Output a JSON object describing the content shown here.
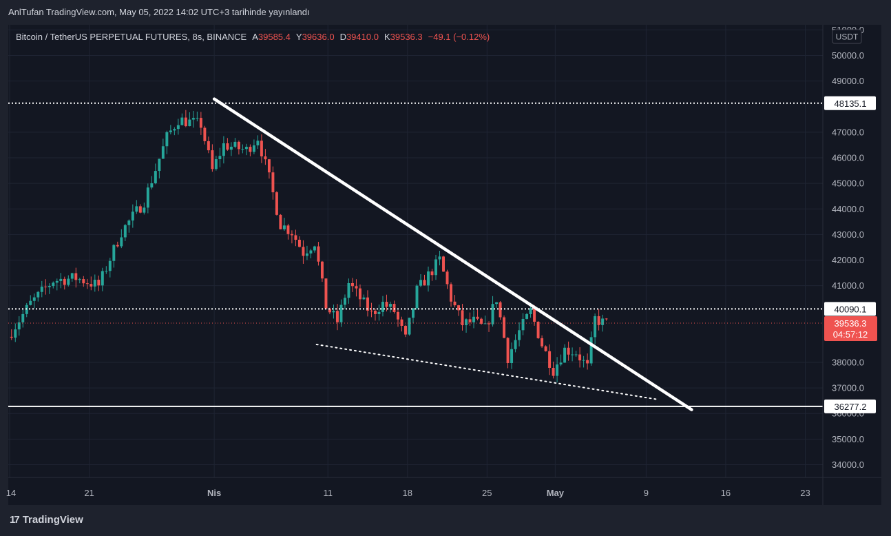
{
  "caption": "AnlTufan TradingView.com, May 05, 2022 14:02 UTC+3 tarihinde yayınlandı",
  "legend": {
    "symbol": "Bitcoin / TetherUS PERPETUAL FUTURES, 8s, BINANCE",
    "open_label": "A",
    "open": "39585.4",
    "high_label": "Y",
    "high": "39636.0",
    "low_label": "D",
    "low": "39410.0",
    "close_label": "K",
    "close": "39536.3",
    "change": "−49.1 (−0.12%)"
  },
  "footer": {
    "brand": "TradingView",
    "logo_mark": "17"
  },
  "colors": {
    "up": "#26a69a",
    "down": "#ef5350",
    "background": "#131722",
    "grid": "#1f2433",
    "text": "#b2b5be",
    "lines": "#ffffff"
  },
  "chart_data": {
    "type": "candlestick",
    "currency": "USDT",
    "ylim": [
      33500,
      51200
    ],
    "y_ticks": [
      51000,
      50000,
      49000,
      47000,
      46000,
      45000,
      44000,
      43000,
      42000,
      41000,
      38000,
      37000,
      36000,
      35000,
      34000
    ],
    "y_tick_labels": [
      "51000.0",
      "50000.0",
      "49000.0",
      "47000.0",
      "46000.0",
      "45000.0",
      "44000.0",
      "43000.0",
      "42000.0",
      "41000.0",
      "38000.0",
      "37000.0",
      "36000.0",
      "35000.0",
      "34000.0"
    ],
    "x_start": "2022-03-14",
    "x_end": "2022-05-24",
    "x_ticks": [
      {
        "date": "2022-03-14",
        "label": "14",
        "bold": false
      },
      {
        "date": "2022-03-21",
        "label": "21",
        "bold": false
      },
      {
        "date": "2022-04-01",
        "label": "Nis",
        "bold": true
      },
      {
        "date": "2022-04-11",
        "label": "11",
        "bold": false
      },
      {
        "date": "2022-04-18",
        "label": "18",
        "bold": false
      },
      {
        "date": "2022-04-25",
        "label": "25",
        "bold": false
      },
      {
        "date": "2022-05-01",
        "label": "May",
        "bold": true
      },
      {
        "date": "2022-05-09",
        "label": "9",
        "bold": false
      },
      {
        "date": "2022-05-16",
        "label": "16",
        "bold": false
      },
      {
        "date": "2022-05-23",
        "label": "23",
        "bold": false
      }
    ],
    "price_markers": [
      {
        "value": 48135.1,
        "label": "48135.1",
        "style": "dotted"
      },
      {
        "value": 40090.1,
        "label": "40090.1",
        "style": "dotted"
      },
      {
        "value": 36277.2,
        "label": "36277.2",
        "style": "solid"
      }
    ],
    "last_price": {
      "value": 39536.3,
      "label": "39536.3",
      "countdown": "04:57:12"
    },
    "trendlines": [
      {
        "style": "solid",
        "from": {
          "date": "2022-04-01",
          "price": 48300
        },
        "to": {
          "date": "2022-05-13",
          "price": 36150
        }
      },
      {
        "style": "dotted",
        "from": {
          "date": "2022-04-10",
          "price": 38700
        },
        "to": {
          "date": "2022-05-10",
          "price": 36550
        }
      }
    ],
    "anchors": [
      {
        "date": "2022-03-14",
        "price": 39000
      },
      {
        "date": "2022-03-16",
        "price": 40300
      },
      {
        "date": "2022-03-18",
        "price": 41200
      },
      {
        "date": "2022-03-20",
        "price": 41300
      },
      {
        "date": "2022-03-22",
        "price": 41000
      },
      {
        "date": "2022-03-24",
        "price": 43100
      },
      {
        "date": "2022-03-26",
        "price": 44300
      },
      {
        "date": "2022-03-28",
        "price": 46800
      },
      {
        "date": "2022-03-29",
        "price": 47500
      },
      {
        "date": "2022-03-31",
        "price": 47300
      },
      {
        "date": "2022-04-01",
        "price": 45500
      },
      {
        "date": "2022-04-02",
        "price": 46500
      },
      {
        "date": "2022-04-04",
        "price": 46300
      },
      {
        "date": "2022-04-05",
        "price": 46800
      },
      {
        "date": "2022-04-06",
        "price": 45200
      },
      {
        "date": "2022-04-07",
        "price": 43400
      },
      {
        "date": "2022-04-08",
        "price": 43100
      },
      {
        "date": "2022-04-09",
        "price": 42300
      },
      {
        "date": "2022-04-10",
        "price": 42700
      },
      {
        "date": "2022-04-11",
        "price": 40200
      },
      {
        "date": "2022-04-12",
        "price": 39600
      },
      {
        "date": "2022-04-13",
        "price": 41100
      },
      {
        "date": "2022-04-15",
        "price": 39900
      },
      {
        "date": "2022-04-16",
        "price": 40300
      },
      {
        "date": "2022-04-17",
        "price": 40000
      },
      {
        "date": "2022-04-18",
        "price": 38900
      },
      {
        "date": "2022-04-19",
        "price": 40800
      },
      {
        "date": "2022-04-20",
        "price": 41400
      },
      {
        "date": "2022-04-21",
        "price": 42000
      },
      {
        "date": "2022-04-22",
        "price": 40500
      },
      {
        "date": "2022-04-23",
        "price": 39500
      },
      {
        "date": "2022-04-24",
        "price": 39600
      },
      {
        "date": "2022-04-25",
        "price": 39300
      },
      {
        "date": "2022-04-26",
        "price": 40500
      },
      {
        "date": "2022-04-27",
        "price": 38200
      },
      {
        "date": "2022-04-28",
        "price": 39200
      },
      {
        "date": "2022-04-29",
        "price": 40000
      },
      {
        "date": "2022-04-30",
        "price": 38700
      },
      {
        "date": "2022-05-01",
        "price": 37700
      },
      {
        "date": "2022-05-02",
        "price": 38500
      },
      {
        "date": "2022-05-03",
        "price": 38400
      },
      {
        "date": "2022-05-04",
        "price": 37800
      },
      {
        "date": "2022-05-04T16:00",
        "price": 39700
      },
      {
        "date": "2022-05-05T10:00",
        "price": 39536.3
      }
    ]
  }
}
